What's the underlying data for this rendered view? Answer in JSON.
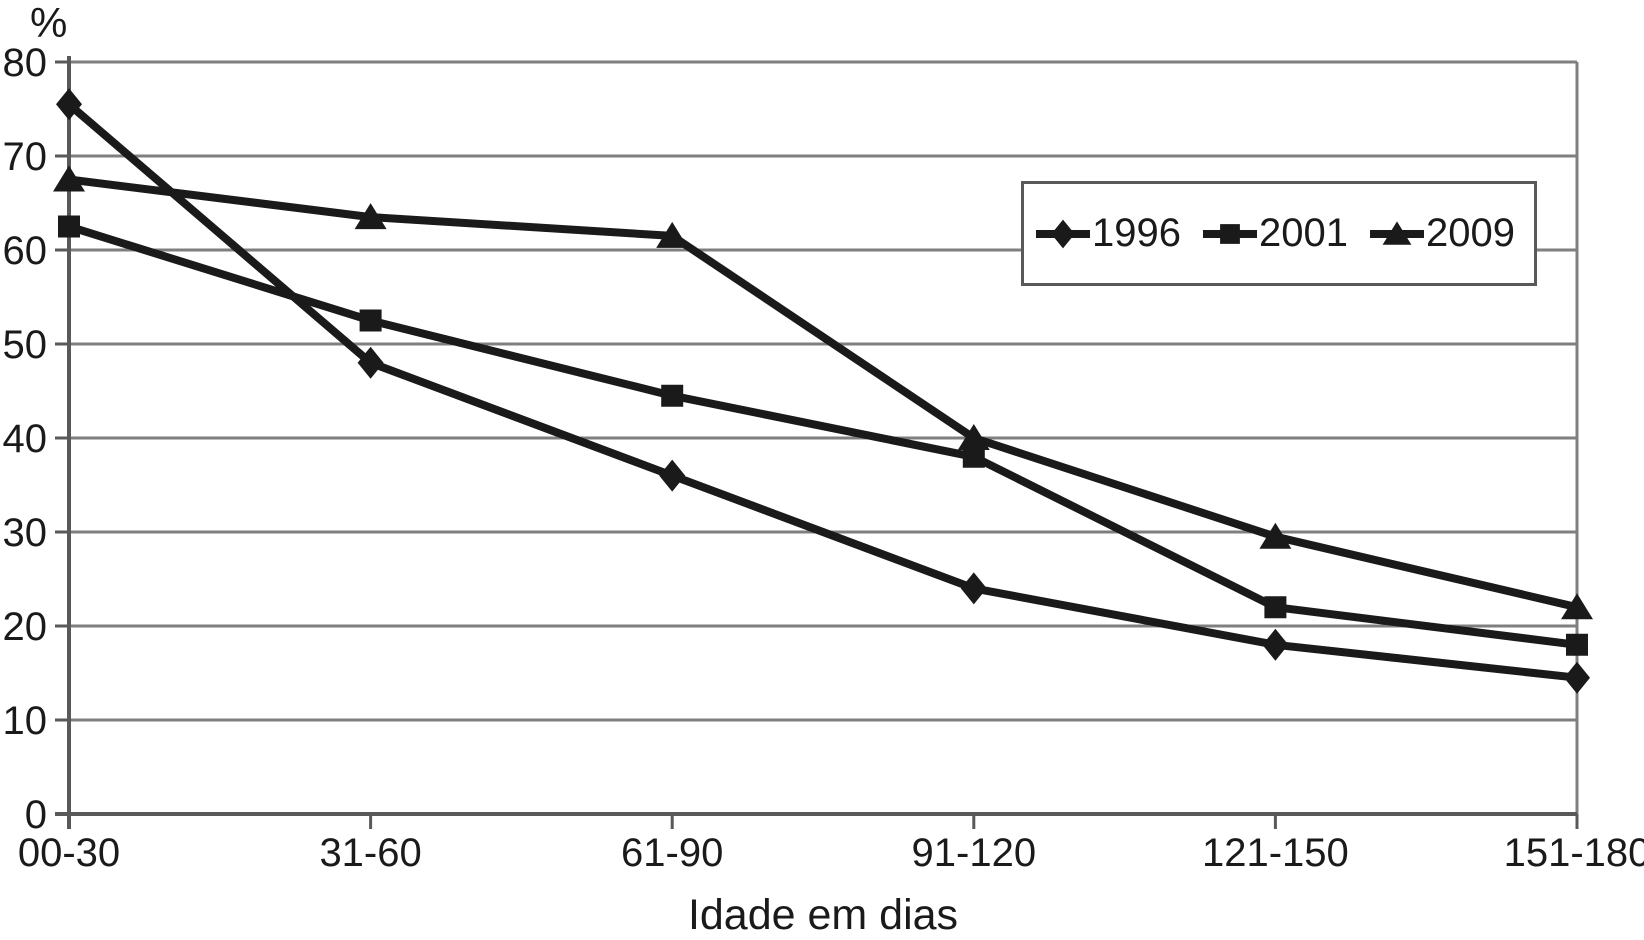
{
  "chart_data": {
    "type": "line",
    "title": "",
    "xlabel": "Idade em dias",
    "ylabel": "%",
    "categories": [
      "00-30",
      "31-60",
      "61-90",
      "91-120",
      "121-150",
      "151-180"
    ],
    "series": [
      {
        "name": "1996",
        "marker": "diamond",
        "values": [
          75.5,
          48,
          36,
          24,
          18,
          14.5
        ]
      },
      {
        "name": "2001",
        "marker": "square",
        "values": [
          62.5,
          52.5,
          44.5,
          38,
          22,
          18
        ]
      },
      {
        "name": "2009",
        "marker": "triangle",
        "values": [
          67.5,
          63.5,
          61.5,
          40,
          29.5,
          22
        ]
      }
    ],
    "ylim": [
      0,
      80
    ],
    "ytick_step": 10,
    "grid": true,
    "legend_position": "top-right",
    "colors": {
      "series": "#1a1a1a",
      "gridline": "#7f7f7f",
      "axis": "#595959",
      "background": "#ffffff"
    }
  }
}
